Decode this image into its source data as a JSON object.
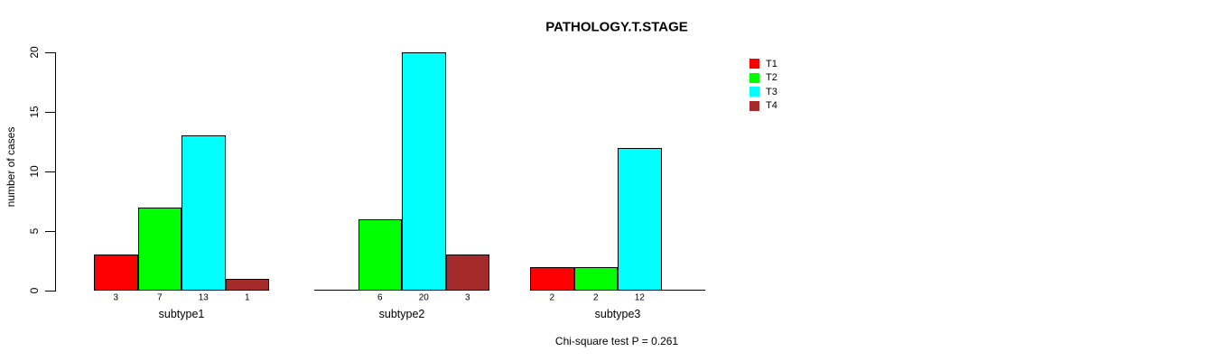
{
  "chart_data": {
    "type": "bar",
    "title": "PATHOLOGY.T.STAGE",
    "ylabel": "number of cases",
    "xlabel": "",
    "annotation": "Chi-square test P = 0.261",
    "categories": [
      "subtype1",
      "subtype2",
      "subtype3"
    ],
    "series": [
      {
        "name": "T1",
        "color": "#FF0000",
        "values": [
          3,
          0,
          2
        ]
      },
      {
        "name": "T2",
        "color": "#00FF00",
        "values": [
          7,
          6,
          2
        ]
      },
      {
        "name": "T3",
        "color": "#00FFFF",
        "values": [
          13,
          20,
          12
        ]
      },
      {
        "name": "T4",
        "color": "#A52A2A",
        "values": [
          1,
          3,
          0
        ]
      }
    ],
    "yticks": [
      0,
      5,
      10,
      15,
      20
    ],
    "ylim": [
      0,
      20
    ],
    "grid": false,
    "legend_position": "top-right",
    "legend_entries": [
      "T1",
      "T2",
      "T3",
      "T4"
    ],
    "bar_value_labels": [
      [
        3,
        7,
        13,
        1
      ],
      [
        null,
        6,
        20,
        3
      ],
      [
        2,
        2,
        12,
        null
      ]
    ],
    "zero_value_rendering": "flat baseline segment, no value label",
    "background": "#FFFFFF"
  }
}
